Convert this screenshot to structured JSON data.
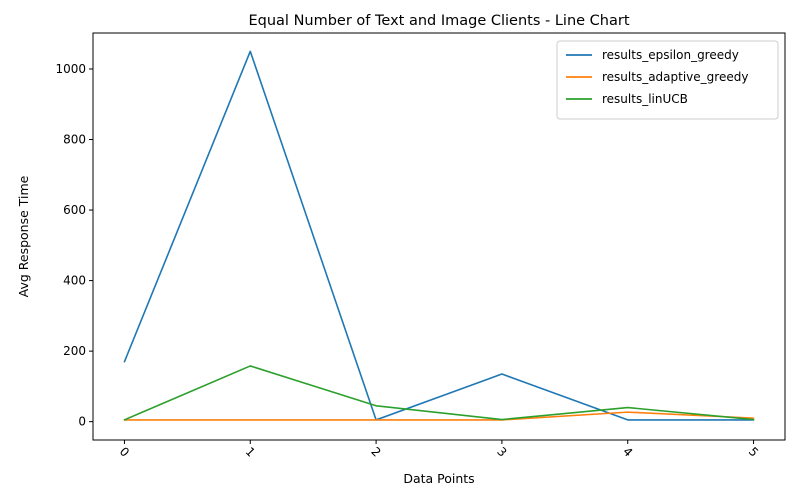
{
  "chart_data": {
    "type": "line",
    "title": "Equal Number of Text and Image Clients - Line Chart",
    "xlabel": "Data Points",
    "ylabel": "Avg Response Time",
    "x": [
      0,
      1,
      2,
      3,
      4,
      5
    ],
    "x_tick_labels": [
      "0",
      "1",
      "2",
      "3",
      "4",
      "5"
    ],
    "x_tick_rotation_deg": 45,
    "xlim": [
      -0.25,
      5.25
    ],
    "ylim": [
      -52,
      1102
    ],
    "y_ticks": [
      0,
      200,
      400,
      600,
      800,
      1000
    ],
    "grid": false,
    "legend_position": "top-right",
    "series": [
      {
        "name": "results_epsilon_greedy",
        "color": "#1f77b4",
        "values": [
          170,
          1050,
          5,
          135,
          5,
          5
        ]
      },
      {
        "name": "results_adaptive_greedy",
        "color": "#ff7f0e",
        "values": [
          5,
          5,
          5,
          5,
          27,
          10
        ]
      },
      {
        "name": "results_linUCB",
        "color": "#2ca02c",
        "values": [
          5,
          158,
          45,
          6,
          40,
          6
        ]
      }
    ]
  }
}
